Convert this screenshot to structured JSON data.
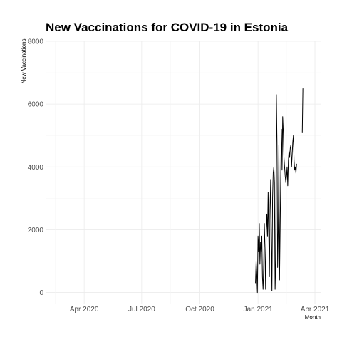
{
  "chart_data": {
    "type": "line",
    "title": "New Vaccinations for COVID-19 in Estonia",
    "xlabel": "Month",
    "ylabel": "New Vaccinations",
    "xlim": [
      "2020-01-31",
      "2021-04-10"
    ],
    "ylim": [
      -350,
      8000
    ],
    "grid": true,
    "x_ticks": [
      {
        "date": "2020-04-01",
        "label": "Apr 2020"
      },
      {
        "date": "2020-07-01",
        "label": "Jul 2020"
      },
      {
        "date": "2020-10-01",
        "label": "Oct 2020"
      },
      {
        "date": "2021-01-01",
        "label": "Jan 2021"
      },
      {
        "date": "2021-04-01",
        "label": "Apr 2021"
      }
    ],
    "y_ticks": [
      0,
      2000,
      4000,
      6000,
      8000
    ],
    "series": [
      {
        "segments": [
          {
            "x": [
              "2020-12-28",
              "2020-12-29",
              "2020-12-30",
              "2020-12-31",
              "2021-01-01",
              "2021-01-02",
              "2021-01-03",
              "2021-01-04",
              "2021-01-05",
              "2021-01-06",
              "2021-01-07",
              "2021-01-08",
              "2021-01-09",
              "2021-01-10",
              "2021-01-11",
              "2021-01-12",
              "2021-01-13",
              "2021-01-14",
              "2021-01-15",
              "2021-01-16",
              "2021-01-17",
              "2021-01-18",
              "2021-01-19",
              "2021-01-20",
              "2021-01-21",
              "2021-01-22",
              "2021-01-23",
              "2021-01-24",
              "2021-01-25",
              "2021-01-26",
              "2021-01-27",
              "2021-01-28",
              "2021-01-29",
              "2021-01-30",
              "2021-01-31",
              "2021-02-01",
              "2021-02-02",
              "2021-02-03",
              "2021-02-04",
              "2021-02-05",
              "2021-02-06",
              "2021-02-07",
              "2021-02-08",
              "2021-02-09",
              "2021-02-10",
              "2021-02-11",
              "2021-02-12",
              "2021-02-13",
              "2021-02-14",
              "2021-02-15",
              "2021-02-16",
              "2021-02-17",
              "2021-02-18",
              "2021-02-19",
              "2021-02-20",
              "2021-02-21",
              "2021-02-22",
              "2021-02-23",
              "2021-02-24",
              "2021-02-25",
              "2021-02-26",
              "2021-02-27",
              "2021-02-28",
              "2021-03-01",
              "2021-03-02",
              "2021-03-03"
            ],
            "y": [
              300,
              1000,
              600,
              0,
              1800,
              1300,
              2200,
              900,
              1600,
              1300,
              1800,
              500,
              100,
              900,
              2200,
              1400,
              100,
              2000,
              2500,
              1800,
              3200,
              1800,
              500,
              2600,
              3600,
              1700,
              50,
              3000,
              3800,
              4000,
              3500,
              100,
              1000,
              6300,
              4800,
              800,
              2000,
              4700,
              400,
              2100,
              3800,
              5200,
              3900,
              5600,
              5100,
              4300,
              4000,
              3700,
              3500,
              3700,
              4000,
              3400,
              4200,
              4500,
              4300,
              4600,
              4700,
              4000,
              4400,
              4800,
              5000,
              4200,
              3900,
              4000,
              3800,
              4100
            ]
          },
          {
            "x": [
              "2021-03-12",
              "2021-03-13"
            ],
            "y": [
              5100,
              6500
            ]
          }
        ]
      }
    ]
  }
}
